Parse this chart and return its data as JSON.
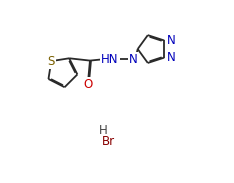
{
  "background_color": "#ffffff",
  "line_color": "#2a2a2a",
  "atom_color_N": "#0000bb",
  "atom_color_S": "#7a6000",
  "atom_color_O": "#cc0000",
  "atom_color_Br": "#880000",
  "atom_color_H": "#444444",
  "font_size": 8.5,
  "line_width": 1.3,
  "dbo": 0.012,
  "fig_width": 2.34,
  "fig_height": 1.83,
  "dpi": 100,
  "xlim": [
    0,
    2.34
  ],
  "ylim": [
    0,
    1.83
  ]
}
